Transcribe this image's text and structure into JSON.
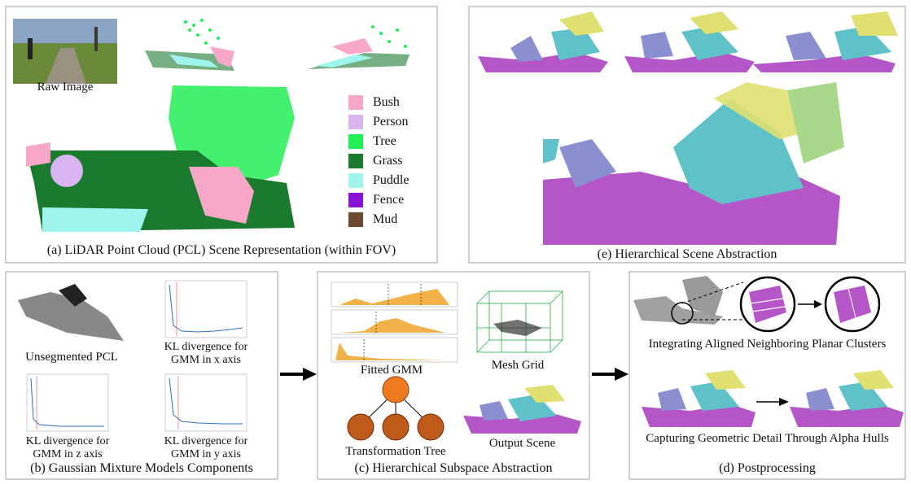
{
  "panels": {
    "a": {
      "caption": "(a) LiDAR Point Cloud (PCL) Scene Representation (within FOV)",
      "raw_image_label": "Raw Image",
      "legend": [
        {
          "label": "Bush",
          "color": "#f7a8c8"
        },
        {
          "label": "Person",
          "color": "#d8b4f0"
        },
        {
          "label": "Tree",
          "color": "#22ee55"
        },
        {
          "label": "Grass",
          "color": "#1a7a2e"
        },
        {
          "label": "Puddle",
          "color": "#9ff5ee"
        },
        {
          "label": "Fence",
          "color": "#8a14d6"
        },
        {
          "label": "Mud",
          "color": "#6b4a2e"
        }
      ]
    },
    "e": {
      "caption": "(e) Hierarchical Scene Abstraction"
    },
    "b": {
      "caption": "(b) Gaussian Mixture Models Components",
      "labels": {
        "unsegmented": "Unsegmented PCL",
        "kl_x": "KL divergence for\nGMM in x axis",
        "kl_z": "KL divergence for\nGMM in z axis",
        "kl_y": "KL divergence for\nGMM in y axis"
      }
    },
    "c": {
      "caption": "(c) Hierarchical Subspace Abstraction",
      "labels": {
        "fitted_gmm": "Fitted GMM",
        "mesh_grid": "Mesh Grid",
        "transformation_tree": "Transformation Tree",
        "output_scene": "Output Scene"
      }
    },
    "d": {
      "caption": "(d) Postprocessing",
      "labels": {
        "integrating": "Integrating Aligned Neighboring Planar Clusters",
        "capturing": "Capturing Geometric Detail Through Alpha Hulls"
      }
    }
  },
  "colors": {
    "mesh_purple": "#b455c8",
    "mesh_cyan": "#5ec2c8",
    "mesh_yellow": "#e0e070",
    "mesh_blue": "#8a8fd0",
    "tree_node": "#c05a1a",
    "tree_root": "#f07a20"
  }
}
